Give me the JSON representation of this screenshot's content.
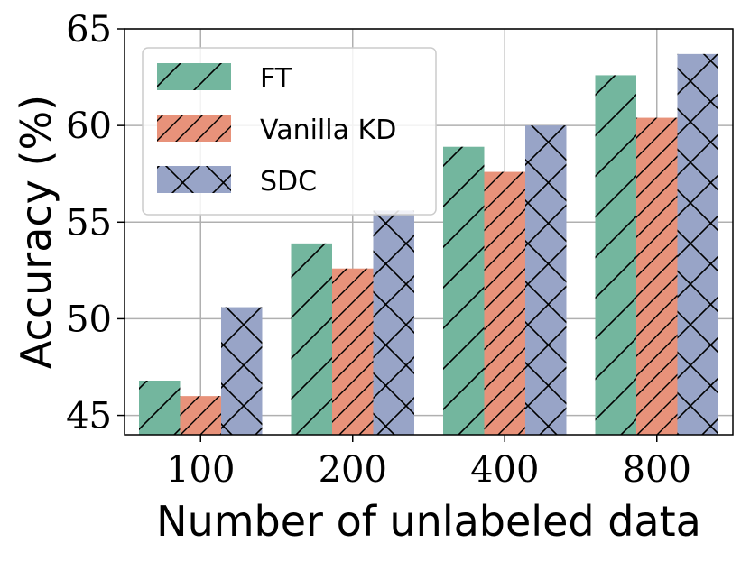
{
  "chart_data": {
    "type": "bar",
    "title": "",
    "xlabel": "Number of unlabeled data",
    "ylabel": "Accuracy (%)",
    "categories": [
      "100",
      "200",
      "400",
      "800"
    ],
    "ylim": [
      44,
      65
    ],
    "yticks": [
      45,
      50,
      55,
      60,
      65
    ],
    "grid": true,
    "legend_position": "top-left",
    "series": [
      {
        "name": "FT",
        "color": "#73b69e",
        "hatch": "diagonal",
        "values": [
          46.8,
          53.9,
          58.9,
          62.6
        ]
      },
      {
        "name": "Vanilla KD",
        "color": "#e8927a",
        "hatch": "dense-diagonal",
        "values": [
          46.0,
          52.6,
          57.6,
          60.4
        ]
      },
      {
        "name": "SDC",
        "color": "#98a4c7",
        "hatch": "cross",
        "values": [
          50.6,
          55.6,
          60.0,
          63.7
        ]
      }
    ]
  }
}
